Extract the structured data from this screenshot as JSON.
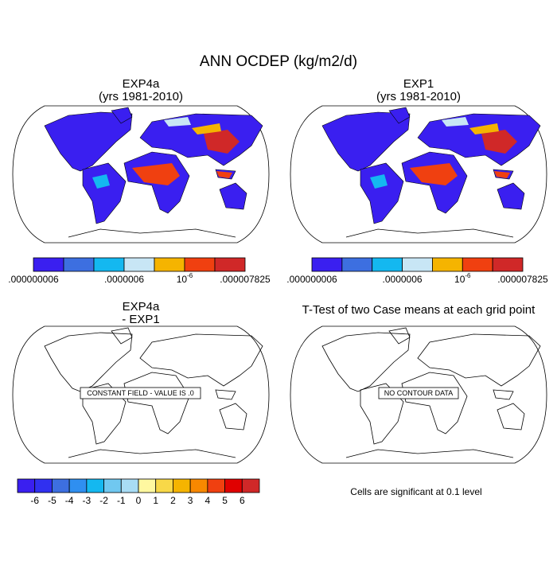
{
  "title": "ANN OCDEP (kg/m2/d)",
  "panels": [
    {
      "title": "EXP4a",
      "subtitle": "(yrs 1981-2010)",
      "colorbar_labels": [
        ".000000006",
        ".0000006",
        {
          "base": "10",
          "exponent": "-6"
        },
        ".000007825"
      ]
    },
    {
      "title": "EXP1",
      "subtitle": "(yrs 1981-2010)",
      "colorbar_labels": [
        ".000000006",
        ".0000006",
        {
          "base": "10",
          "exponent": "-6"
        },
        ".000007825"
      ]
    },
    {
      "title": "EXP4a",
      "subtitle": "- EXP1",
      "note": "CONSTANT FIELD - VALUE IS .0",
      "colorbar_labels": [
        "-6",
        "-5",
        "-4",
        "-3",
        "-2",
        "-1",
        "0",
        "1",
        "2",
        "3",
        "4",
        "5",
        "6"
      ]
    },
    {
      "title": "T-Test of two Case means at each grid point",
      "note": "NO CONTOUR DATA",
      "caption": "Cells are significant at 0.1 level"
    }
  ]
}
